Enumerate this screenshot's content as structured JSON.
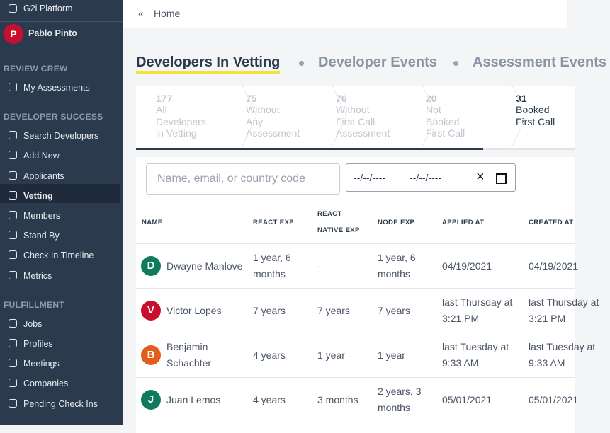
{
  "app": {
    "name": "G2i Platform",
    "user": {
      "initial": "P",
      "name": "Pablo Pinto",
      "color": "#c8102e"
    }
  },
  "sidebar": {
    "sections": [
      {
        "title": "REVIEW CREW",
        "items": [
          "My Assessments"
        ]
      },
      {
        "title": "DEVELOPER SUCCESS",
        "items": [
          "Search Developers",
          "Add New",
          "Applicants",
          "Vetting",
          "Members",
          "Stand By",
          "Check In Timeline",
          "Metrics"
        ]
      },
      {
        "title": "FULFILLMENT",
        "items": [
          "Jobs",
          "Profiles",
          "Meetings",
          "Companies",
          "Pending Check Ins"
        ]
      }
    ],
    "active": "Vetting"
  },
  "header": {
    "back": "«",
    "breadcrumb": "Home"
  },
  "tabs": {
    "items": [
      "Developers In Vetting",
      "Developer Events",
      "Assessment Events"
    ],
    "active": 0
  },
  "steps": {
    "items": [
      {
        "count": 177,
        "label": [
          "All",
          "Developers",
          "in Vetting"
        ]
      },
      {
        "count": 75,
        "label": [
          "Without",
          "Any",
          "Assessment"
        ]
      },
      {
        "count": 76,
        "label": [
          "Without",
          "First Call",
          "Assessment"
        ]
      },
      {
        "count": 20,
        "label": [
          "Not",
          "Booked",
          "First Call"
        ]
      },
      {
        "count": 31,
        "label": [
          "Booked",
          "First Call"
        ]
      }
    ],
    "active": 4
  },
  "filters": {
    "search_placeholder": "Name, email, or country code",
    "date_from": "--/--/----",
    "date_to": "--/--/----",
    "clear": "×"
  },
  "table": {
    "headers": [
      "NAME",
      "REACT EXP",
      "REACT NATIVE EXP",
      "NODE EXP",
      "APPLIED AT",
      "CREATED AT"
    ],
    "rows": [
      {
        "initial": "D",
        "color": "#0f7a5c",
        "cells": [
          "Dwayne Manlove",
          "1 year, 6 months",
          "-",
          "1 year, 6 months",
          "04/19/2021",
          "04/19/2021"
        ]
      },
      {
        "initial": "V",
        "color": "#c8102e",
        "cells": [
          "Victor Lopes",
          "7 years",
          "7 years",
          "7 years",
          "last Thursday at 3:21 PM",
          "last Thursday at 3:21 PM"
        ]
      },
      {
        "initial": "B",
        "color": "#e35d1f",
        "cells": [
          "Benjamin Schachter",
          "4 years",
          "1 year",
          "1 year",
          "last Tuesday at 9:33 AM",
          "last Tuesday at 9:33 AM"
        ]
      },
      {
        "initial": "J",
        "color": "#0f7a5c",
        "cells": [
          "Juan Lemos",
          "4 years",
          "3 months",
          "2 years, 3 months",
          "05/01/2021",
          "05/01/2021"
        ]
      }
    ]
  }
}
